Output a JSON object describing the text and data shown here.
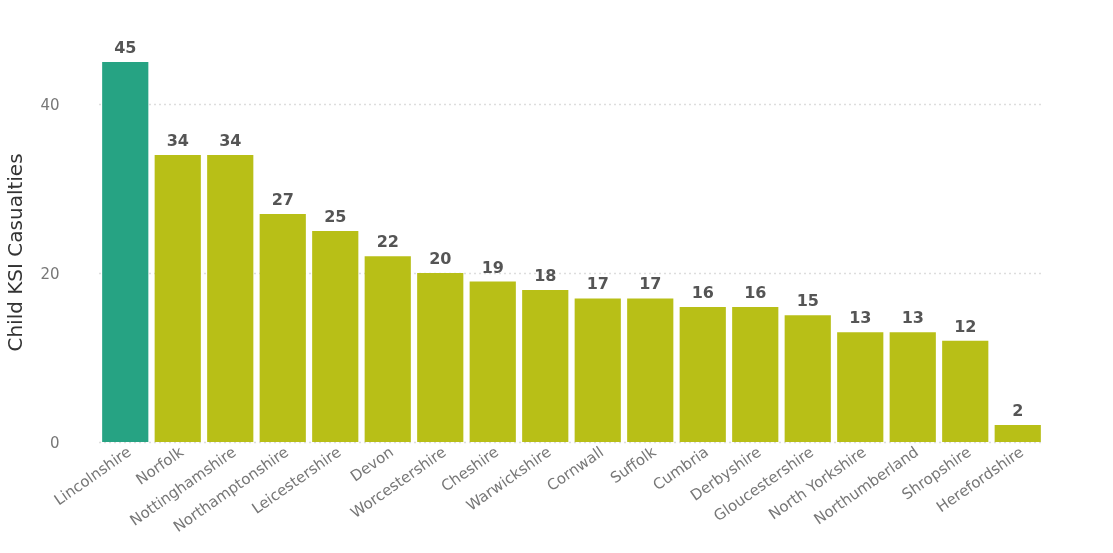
{
  "chart_data": {
    "type": "bar",
    "ylabel": "Child KSI Casualties",
    "categories": [
      "Lincolnshire",
      "Norfolk",
      "Nottinghamshire",
      "Northamptonshire",
      "Leicestershire",
      "Devon",
      "Worcestershire",
      "Cheshire",
      "Warwickshire",
      "Cornwall",
      "Suffolk",
      "Cumbria",
      "Derbyshire",
      "Gloucestershire",
      "North Yorkshire",
      "Northumberland",
      "Shropshire",
      "Herefordshire"
    ],
    "values": [
      45,
      34,
      34,
      27,
      25,
      22,
      20,
      19,
      18,
      17,
      17,
      16,
      16,
      15,
      13,
      13,
      12,
      2
    ],
    "colors": [
      "#26a383",
      "#b8bf17",
      "#b8bf17",
      "#b8bf17",
      "#b8bf17",
      "#b8bf17",
      "#b8bf17",
      "#b8bf17",
      "#b8bf17",
      "#b8bf17",
      "#b8bf17",
      "#b8bf17",
      "#b8bf17",
      "#b8bf17",
      "#b8bf17",
      "#b8bf17",
      "#b8bf17",
      "#b8bf17"
    ],
    "ylim": [
      0,
      45
    ],
    "yticks": [
      0,
      20,
      40
    ],
    "grid": "y",
    "data_labels": true
  }
}
